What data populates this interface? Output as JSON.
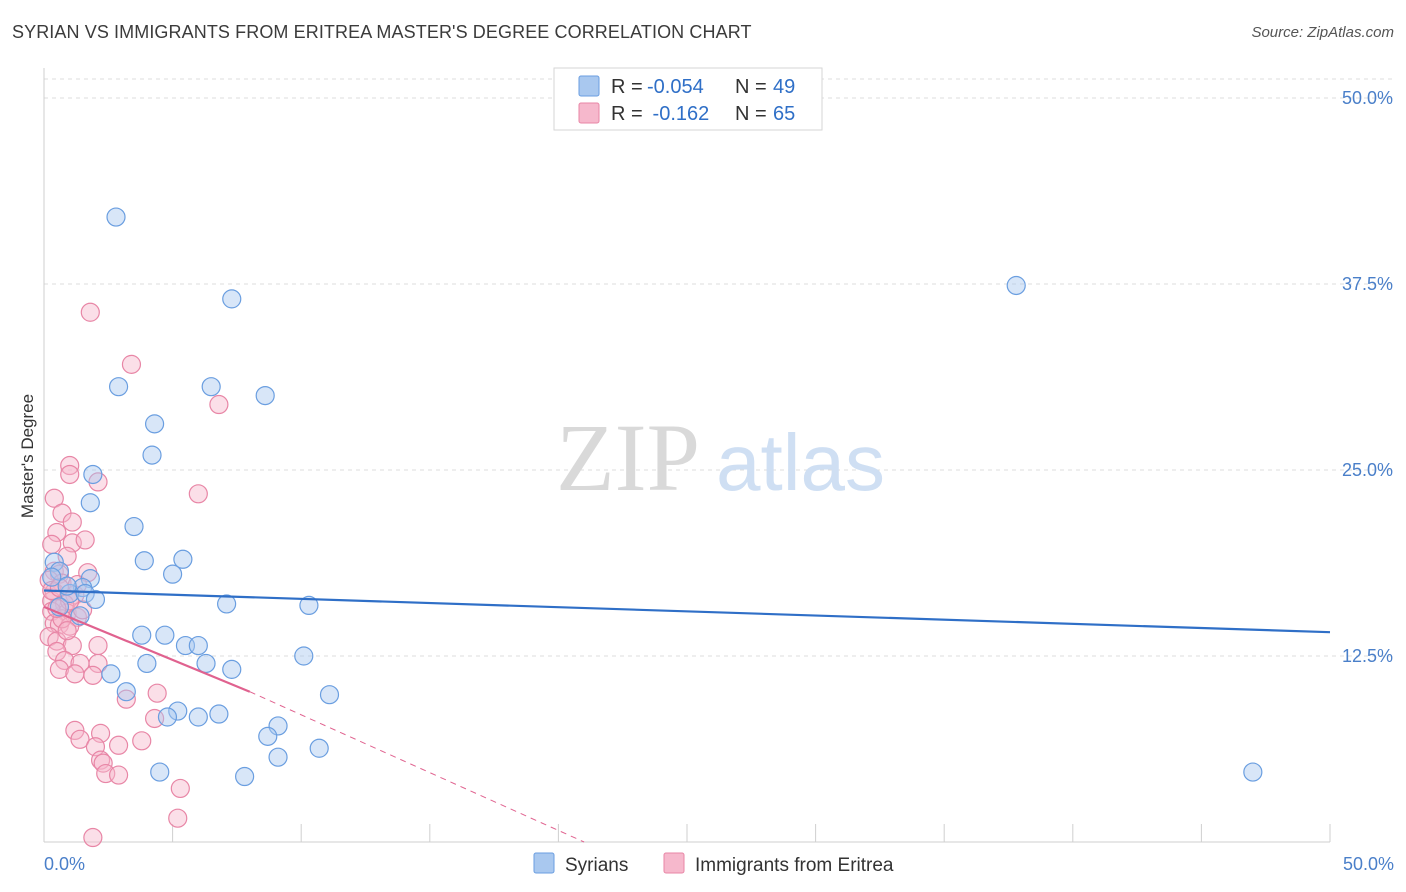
{
  "title": "SYRIAN VS IMMIGRANTS FROM ERITREA MASTER'S DEGREE CORRELATION CHART",
  "source": "Source: ZipAtlas.com",
  "watermark": {
    "zip": "ZIP",
    "atlas": "atlas"
  },
  "colors": {
    "syrians_fill": "#a9c8ef",
    "syrians_stroke": "#6a9ee0",
    "syrians_line": "#2f6fc7",
    "eritrea_fill": "#f6b8cc",
    "eritrea_stroke": "#e886a6",
    "eritrea_line": "#e0628f",
    "grid": "#dcdcdc",
    "tick_label": "#4a7fc9"
  },
  "legend": {
    "rows": [
      {
        "r_label": "R =",
        "r_value": "-0.054",
        "n_label": "N =",
        "n_value": "49",
        "series": "syrians"
      },
      {
        "r_label": "R =",
        "r_value": " -0.162",
        "n_label": "N =",
        "n_value": "65",
        "series": "eritrea"
      }
    ]
  },
  "chart_data": {
    "type": "scatter",
    "xlabel": "",
    "ylabel": "Master's Degree",
    "xlim": [
      0,
      50
    ],
    "ylim": [
      0,
      50
    ],
    "x_tick_labels": {
      "min": "0.0%",
      "max": "50.0%"
    },
    "y_ticks": [
      12.5,
      25.0,
      37.5,
      50.0
    ],
    "y_tick_labels": [
      "12.5%",
      "25.0%",
      "37.5%",
      "50.0%"
    ],
    "grid": true,
    "legend_position": "bottom",
    "series": [
      {
        "name": "Syrians",
        "key": "syrians",
        "points": [
          [
            2.8,
            42.0
          ],
          [
            7.3,
            36.5
          ],
          [
            2.9,
            30.6
          ],
          [
            6.5,
            30.6
          ],
          [
            8.6,
            30.0
          ],
          [
            1.9,
            24.7
          ],
          [
            4.3,
            28.1
          ],
          [
            4.2,
            26.0
          ],
          [
            1.8,
            22.8
          ],
          [
            3.5,
            21.2
          ],
          [
            0.4,
            18.8
          ],
          [
            0.6,
            18.2
          ],
          [
            1.8,
            17.7
          ],
          [
            1.5,
            17.1
          ],
          [
            1.0,
            16.7
          ],
          [
            1.6,
            16.7
          ],
          [
            3.9,
            18.9
          ],
          [
            5.4,
            19.0
          ],
          [
            5.0,
            18.0
          ],
          [
            7.1,
            16.0
          ],
          [
            10.3,
            15.9
          ],
          [
            3.8,
            13.9
          ],
          [
            4.7,
            13.9
          ],
          [
            5.5,
            13.2
          ],
          [
            6.0,
            13.2
          ],
          [
            4.0,
            12.0
          ],
          [
            6.3,
            12.0
          ],
          [
            7.3,
            11.6
          ],
          [
            2.6,
            11.3
          ],
          [
            10.1,
            12.5
          ],
          [
            3.2,
            10.1
          ],
          [
            5.2,
            8.8
          ],
          [
            4.8,
            8.4
          ],
          [
            6.0,
            8.4
          ],
          [
            6.8,
            8.6
          ],
          [
            11.1,
            9.9
          ],
          [
            9.1,
            7.8
          ],
          [
            8.7,
            7.1
          ],
          [
            10.7,
            6.3
          ],
          [
            9.1,
            5.7
          ],
          [
            4.5,
            4.7
          ],
          [
            7.8,
            4.4
          ],
          [
            37.8,
            37.4
          ],
          [
            47.0,
            4.7
          ],
          [
            0.3,
            17.8
          ],
          [
            0.9,
            17.2
          ],
          [
            0.6,
            15.8
          ],
          [
            1.4,
            15.2
          ],
          [
            2.0,
            16.3
          ]
        ]
      },
      {
        "name": "Immigrants from Eritrea",
        "key": "eritrea",
        "points": [
          [
            1.8,
            35.6
          ],
          [
            3.4,
            32.1
          ],
          [
            6.8,
            29.4
          ],
          [
            2.1,
            24.2
          ],
          [
            6.0,
            23.4
          ],
          [
            1.0,
            25.3
          ],
          [
            1.0,
            24.7
          ],
          [
            0.4,
            23.1
          ],
          [
            0.7,
            22.1
          ],
          [
            1.1,
            21.5
          ],
          [
            0.5,
            20.8
          ],
          [
            1.1,
            20.1
          ],
          [
            1.6,
            20.3
          ],
          [
            0.3,
            20.0
          ],
          [
            0.9,
            19.2
          ],
          [
            0.4,
            18.2
          ],
          [
            0.6,
            18.0
          ],
          [
            1.7,
            18.1
          ],
          [
            0.2,
            17.6
          ],
          [
            0.7,
            17.4
          ],
          [
            0.4,
            16.8
          ],
          [
            1.2,
            16.6
          ],
          [
            0.3,
            16.2
          ],
          [
            0.8,
            16.0
          ],
          [
            0.3,
            15.5
          ],
          [
            0.9,
            15.4
          ],
          [
            1.3,
            15.1
          ],
          [
            0.4,
            14.7
          ],
          [
            0.6,
            14.6
          ],
          [
            1.0,
            14.5
          ],
          [
            0.2,
            13.8
          ],
          [
            0.5,
            13.5
          ],
          [
            1.1,
            13.2
          ],
          [
            2.1,
            13.2
          ],
          [
            0.5,
            12.8
          ],
          [
            0.8,
            12.2
          ],
          [
            1.4,
            12.0
          ],
          [
            2.1,
            12.0
          ],
          [
            0.6,
            11.6
          ],
          [
            1.2,
            11.3
          ],
          [
            1.9,
            11.2
          ],
          [
            4.4,
            10.0
          ],
          [
            3.2,
            9.6
          ],
          [
            4.3,
            8.3
          ],
          [
            1.2,
            7.5
          ],
          [
            2.2,
            7.3
          ],
          [
            1.4,
            6.9
          ],
          [
            2.0,
            6.4
          ],
          [
            2.9,
            6.5
          ],
          [
            3.8,
            6.8
          ],
          [
            2.2,
            5.5
          ],
          [
            2.3,
            5.3
          ],
          [
            2.4,
            4.6
          ],
          [
            2.9,
            4.5
          ],
          [
            5.3,
            3.6
          ],
          [
            5.2,
            1.6
          ],
          [
            1.9,
            0.3
          ],
          [
            0.3,
            16.9
          ],
          [
            0.7,
            15.0
          ],
          [
            1.5,
            15.6
          ],
          [
            0.9,
            14.2
          ],
          [
            1.0,
            16.2
          ],
          [
            0.5,
            15.7
          ],
          [
            0.6,
            17.1
          ],
          [
            1.3,
            17.3
          ]
        ]
      }
    ],
    "trend_lines": [
      {
        "series": "syrians",
        "x": [
          0,
          50
        ],
        "y": [
          16.9,
          14.1
        ],
        "style": "solid"
      },
      {
        "series": "eritrea",
        "x": [
          0,
          8.0
        ],
        "y": [
          15.8,
          10.1
        ],
        "style": "solid"
      },
      {
        "series": "eritrea",
        "x": [
          8.0,
          21.0
        ],
        "y": [
          10.1,
          0.0
        ],
        "style": "dashed"
      }
    ]
  },
  "bottom_legend": {
    "items": [
      {
        "label": "Syrians",
        "series": "syrians"
      },
      {
        "label": "Immigrants from Eritrea",
        "series": "eritrea"
      }
    ]
  }
}
